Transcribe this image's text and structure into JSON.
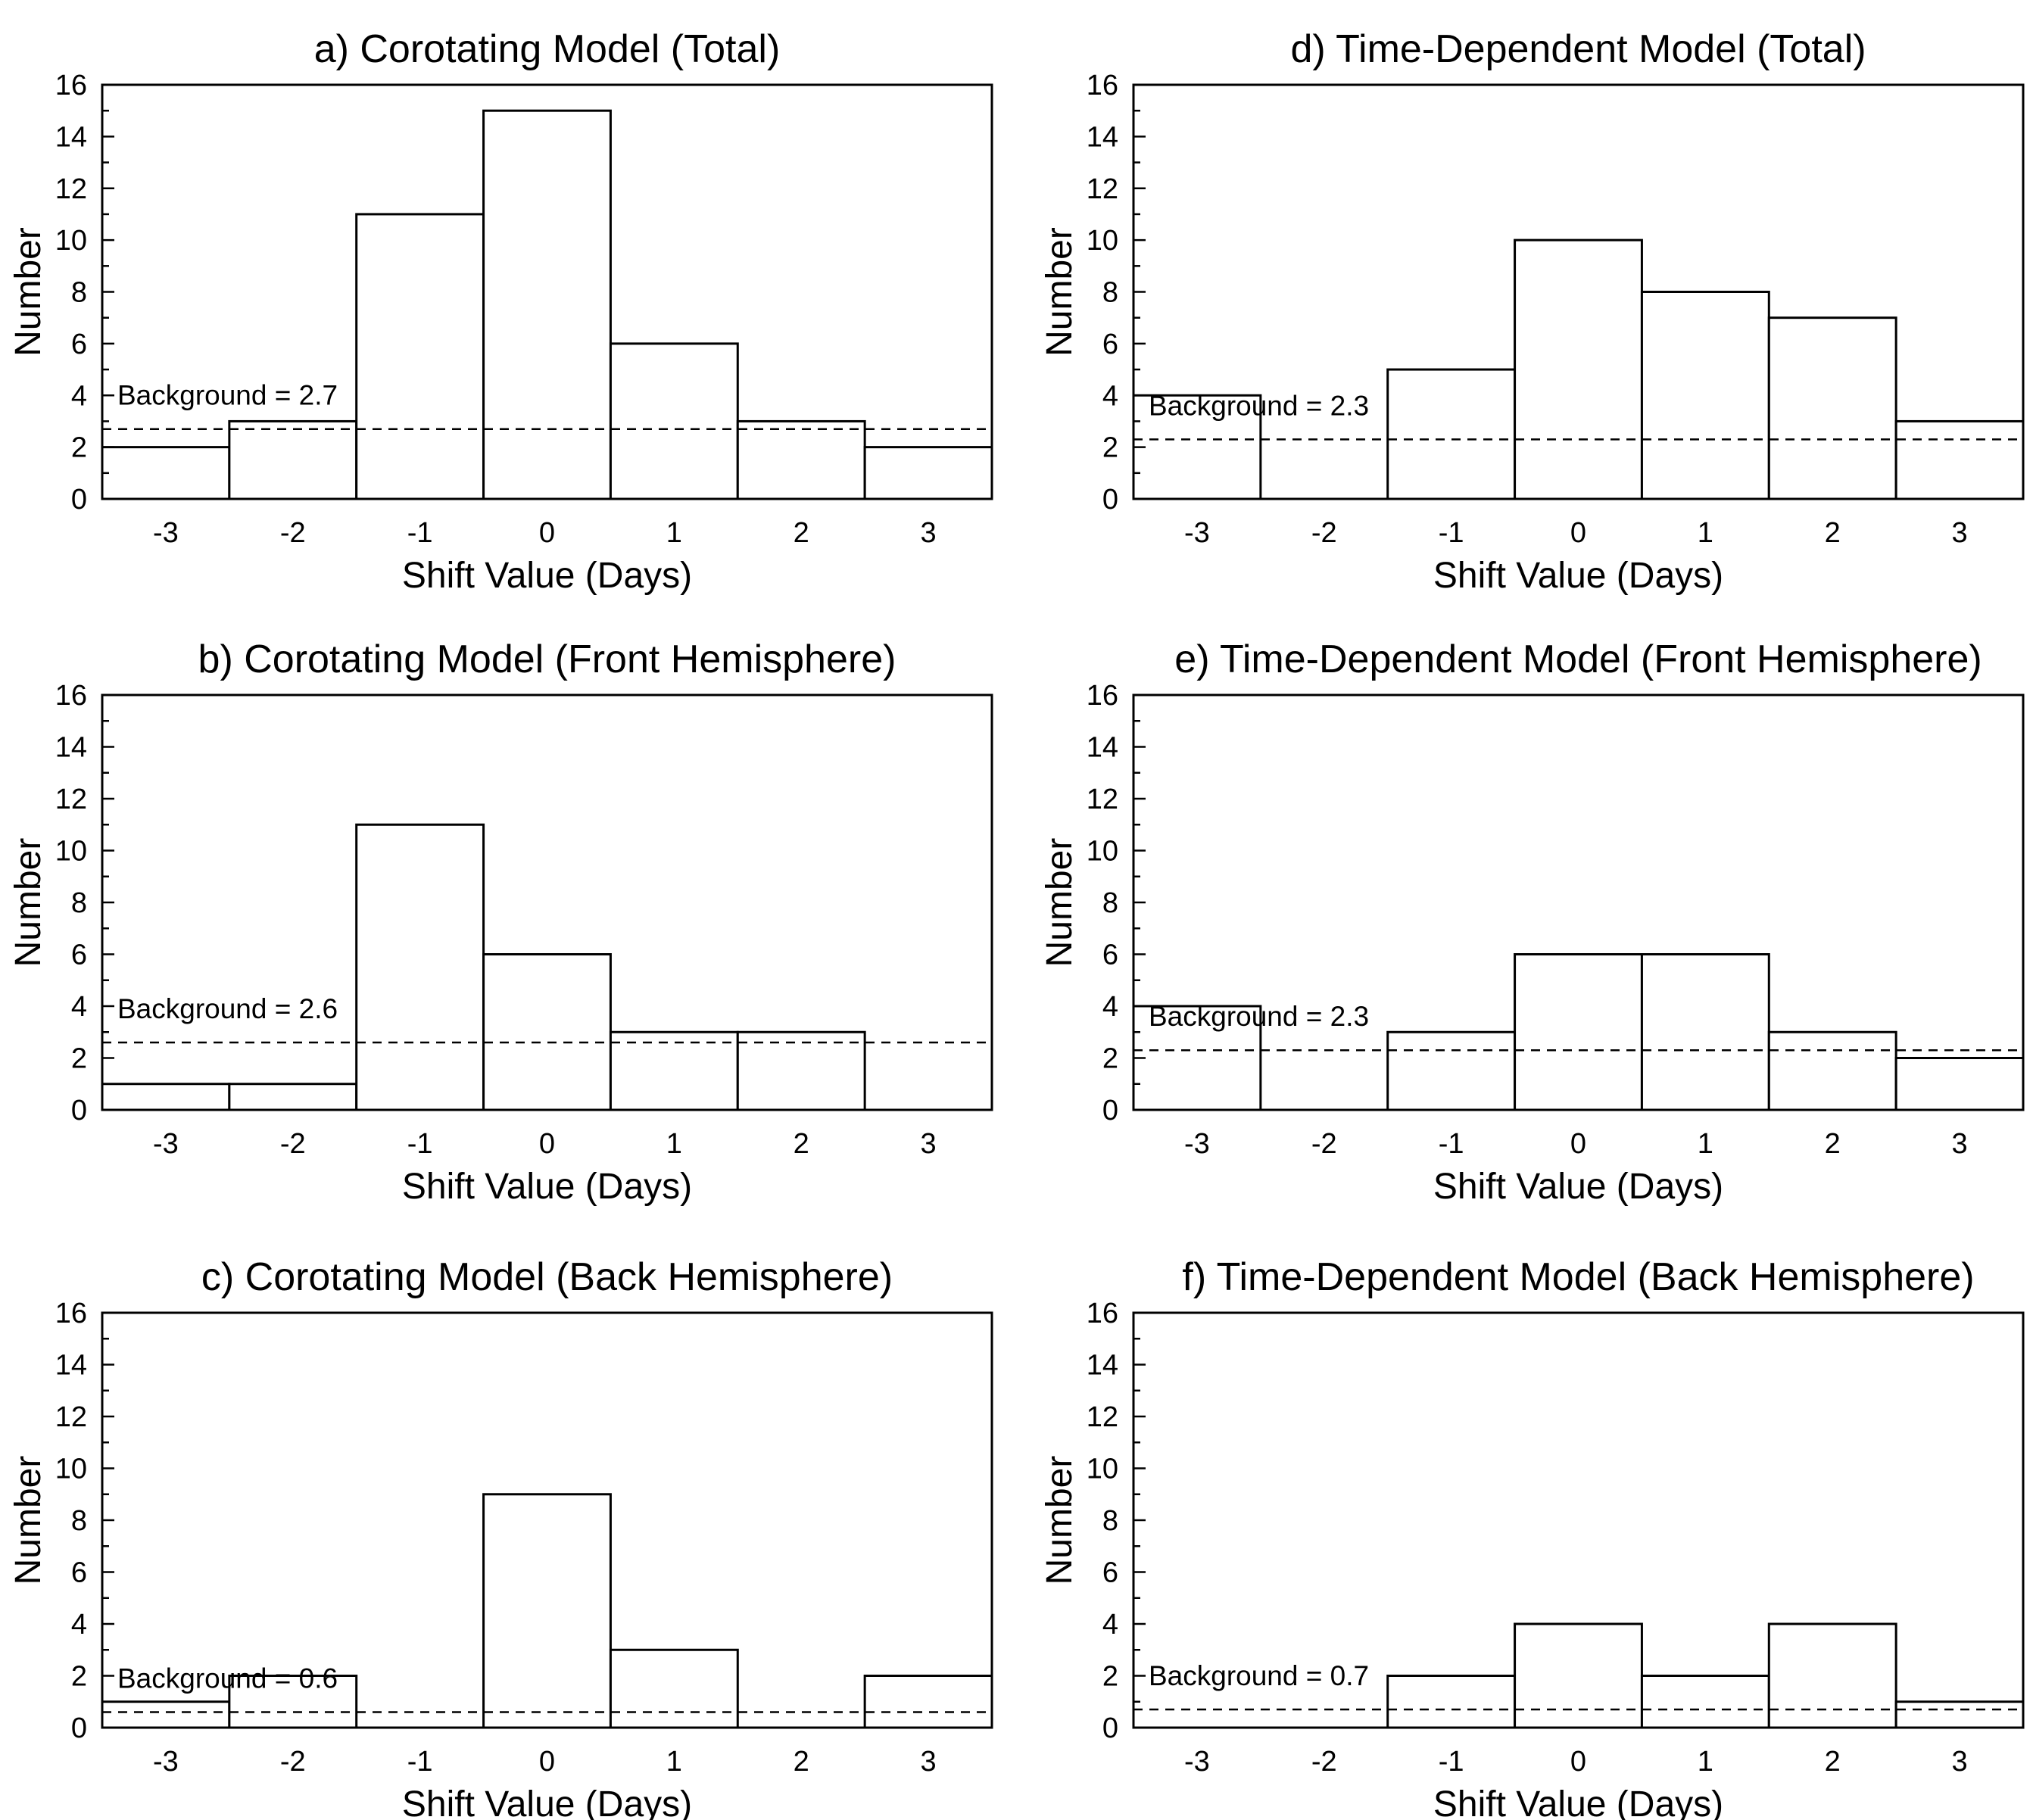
{
  "chart_data": [
    {
      "panel": "a",
      "type": "bar",
      "title": "a)  Corotating Model (Total)",
      "xlabel": "Shift Value (Days)",
      "ylabel": "Number",
      "categories": [
        "-3",
        "-2",
        "-1",
        "0",
        "1",
        "2",
        "3"
      ],
      "values": [
        2,
        3,
        11,
        15,
        6,
        3,
        2
      ],
      "ylim": [
        0,
        16
      ],
      "yticks": [
        "0",
        "2",
        "4",
        "6",
        "8",
        "10",
        "12",
        "14",
        "16"
      ],
      "background": {
        "label": "Background = 2.7",
        "value": 2.7,
        "style": "dashed"
      },
      "grid": false
    },
    {
      "panel": "b",
      "type": "bar",
      "title": "b)  Corotating Model (Front Hemisphere)",
      "xlabel": "Shift Value (Days)",
      "ylabel": "Number",
      "categories": [
        "-3",
        "-2",
        "-1",
        "0",
        "1",
        "2",
        "3"
      ],
      "values": [
        1,
        1,
        11,
        6,
        3,
        3,
        0
      ],
      "ylim": [
        0,
        16
      ],
      "yticks": [
        "0",
        "2",
        "4",
        "6",
        "8",
        "10",
        "12",
        "14",
        "16"
      ],
      "background": {
        "label": "Background = 2.6",
        "value": 2.6,
        "style": "dashed"
      },
      "grid": false
    },
    {
      "panel": "c",
      "type": "bar",
      "title": "c)  Corotating Model (Back Hemisphere)",
      "xlabel": "Shift Value (Days)",
      "ylabel": "Number",
      "categories": [
        "-3",
        "-2",
        "-1",
        "0",
        "1",
        "2",
        "3"
      ],
      "values": [
        1,
        2,
        0,
        9,
        3,
        0,
        2
      ],
      "ylim": [
        0,
        16
      ],
      "yticks": [
        "0",
        "2",
        "4",
        "6",
        "8",
        "10",
        "12",
        "14",
        "16"
      ],
      "background": {
        "label": "Background = 0.6",
        "value": 0.6,
        "style": "dashed"
      },
      "grid": false
    },
    {
      "panel": "d",
      "type": "bar",
      "title": "d)  Time-Dependent Model (Total)",
      "xlabel": "Shift Value (Days)",
      "ylabel": "Number",
      "categories": [
        "-3",
        "-2",
        "-1",
        "0",
        "1",
        "2",
        "3"
      ],
      "values": [
        4,
        0,
        5,
        10,
        8,
        7,
        3
      ],
      "ylim": [
        0,
        16
      ],
      "yticks": [
        "0",
        "2",
        "4",
        "6",
        "8",
        "10",
        "12",
        "14",
        "16"
      ],
      "background": {
        "label": "Background = 2.3",
        "value": 2.3,
        "style": "dashed"
      },
      "grid": false
    },
    {
      "panel": "e",
      "type": "bar",
      "title": "e)  Time-Dependent Model (Front Hemisphere)",
      "xlabel": "Shift Value (Days)",
      "ylabel": "Number",
      "categories": [
        "-3",
        "-2",
        "-1",
        "0",
        "1",
        "2",
        "3"
      ],
      "values": [
        4,
        0,
        3,
        6,
        6,
        3,
        2
      ],
      "ylim": [
        0,
        16
      ],
      "yticks": [
        "0",
        "2",
        "4",
        "6",
        "8",
        "10",
        "12",
        "14",
        "16"
      ],
      "background": {
        "label": "Background = 2.3",
        "value": 2.3,
        "style": "dashed"
      },
      "grid": false
    },
    {
      "panel": "f",
      "type": "bar",
      "title": "f) Time-Dependent Model (Back Hemisphere)",
      "xlabel": "Shift Value (Days)",
      "ylabel": "Number",
      "categories": [
        "-3",
        "-2",
        "-1",
        "0",
        "1",
        "2",
        "3"
      ],
      "values": [
        0,
        0,
        2,
        4,
        2,
        4,
        1
      ],
      "ylim": [
        0,
        16
      ],
      "yticks": [
        "0",
        "2",
        "4",
        "6",
        "8",
        "10",
        "12",
        "14",
        "16"
      ],
      "background": {
        "label": "Background = 0.7",
        "value": 0.7,
        "style": "dashed"
      },
      "grid": false
    }
  ]
}
